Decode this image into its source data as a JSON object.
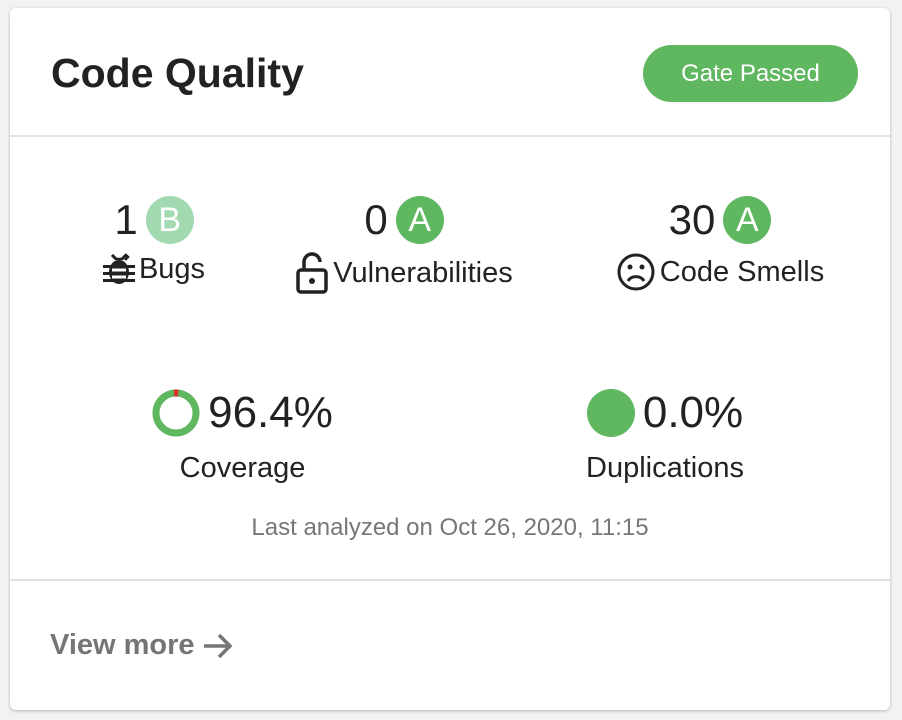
{
  "header": {
    "title": "Code Quality",
    "gate_status": "Gate Passed"
  },
  "colors": {
    "green": "#5fb760",
    "light_green": "#a3d9b1",
    "red": "#d9302a",
    "muted": "#777777"
  },
  "metrics": [
    {
      "value": "1",
      "grade": "B",
      "label": "Bugs",
      "icon": "bug-icon"
    },
    {
      "value": "0",
      "grade": "A",
      "label": "Vulnerabilities",
      "icon": "unlock-icon"
    },
    {
      "value": "30",
      "grade": "A",
      "label": "Code Smells",
      "icon": "sad-face-icon"
    }
  ],
  "coverage": {
    "value": "96.4%",
    "percent": 96.4,
    "label": "Coverage"
  },
  "duplications": {
    "value": "0.0%",
    "label": "Duplications"
  },
  "last_analyzed": "Last analyzed on Oct 26, 2020, 11:15",
  "footer": {
    "link": "View more"
  }
}
